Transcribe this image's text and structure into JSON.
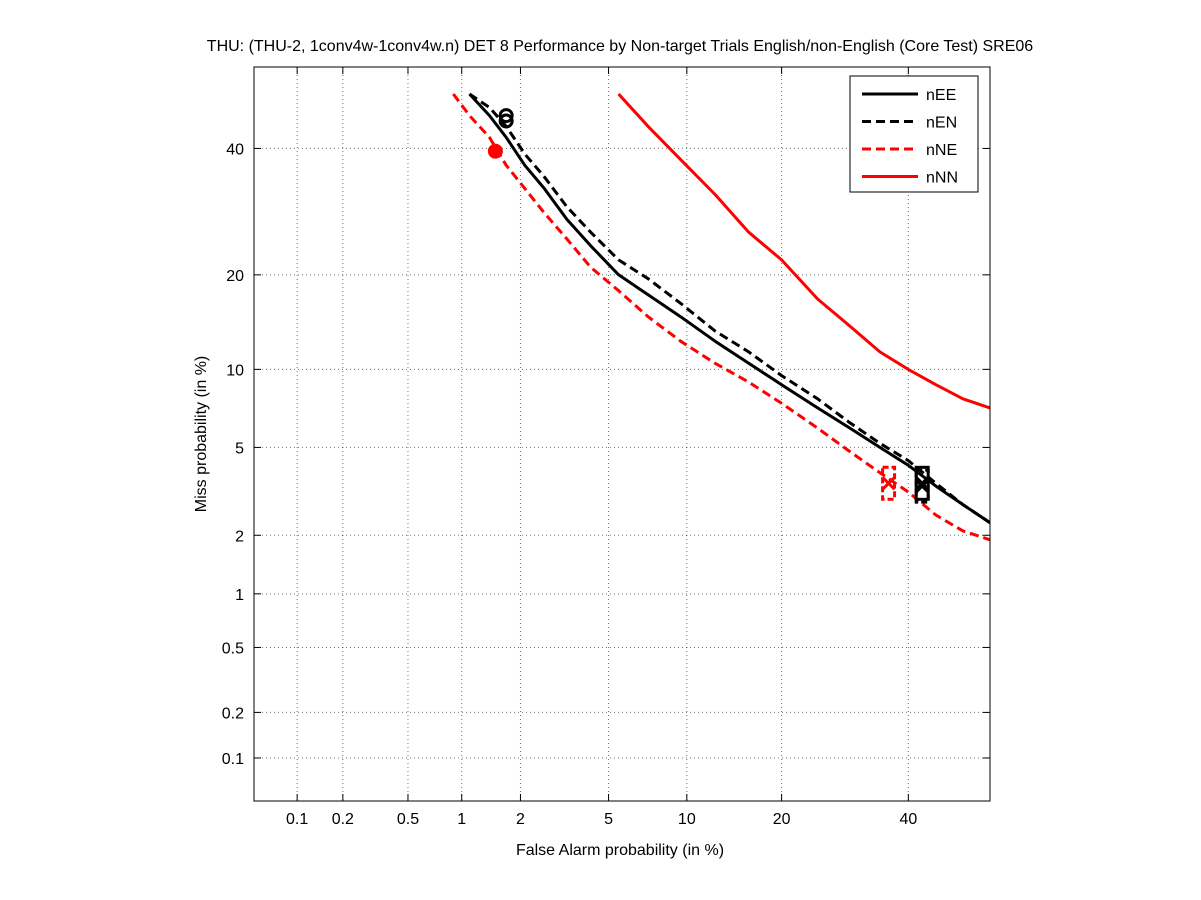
{
  "chart_data": {
    "type": "line",
    "title": "THU: (THU-2, 1conv4w-1conv4w.n) DET 8 Performance by Non-target Trials English/non-English (Core Test) SRE06",
    "xlabel": "False Alarm probability (in %)",
    "ylabel": "Miss probability (in %)",
    "scale": "normal-deviate (probit) on both axes",
    "xlim": [
      0.05,
      55
    ],
    "ylim": [
      0.05,
      55
    ],
    "x_ticks": [
      0.1,
      0.2,
      0.5,
      1,
      2,
      5,
      10,
      20,
      40
    ],
    "x_tick_labels": [
      "0.1",
      "0.2",
      "0.5",
      "1",
      "2",
      "5",
      "10",
      "20",
      "40"
    ],
    "y_ticks": [
      0.1,
      0.2,
      0.5,
      1,
      2,
      5,
      10,
      20,
      40
    ],
    "y_tick_labels": [
      "0.1",
      "0.2",
      "0.5",
      "1",
      "2",
      "5",
      "10",
      "20",
      "40"
    ],
    "grid": true,
    "legend_position": "top-right",
    "series": [
      {
        "name": "nEE",
        "color": "#000000",
        "dash": "solid",
        "x": [
          1.1,
          1.4,
          1.7,
          2.1,
          2.6,
          3.3,
          4.2,
          5.5,
          7.2,
          9.5,
          12.5,
          16,
          20,
          25,
          30,
          35,
          40,
          45,
          50,
          55
        ],
        "y": [
          50,
          46,
          42,
          37,
          33,
          28,
          24,
          20,
          17.5,
          15,
          12.5,
          10.5,
          8.8,
          7.2,
          6.0,
          5.0,
          4.2,
          3.4,
          2.8,
          2.3
        ],
        "dcf_marker": {
          "x": 1.7,
          "y": 46,
          "style": "circle"
        },
        "eer_marker": {
          "x": 42.5,
          "y": 3.5,
          "style": "box"
        }
      },
      {
        "name": "nEN",
        "color": "#000000",
        "dash": "dashed",
        "x": [
          1.1,
          1.4,
          1.7,
          2.1,
          2.6,
          3.3,
          4.2,
          5.5,
          7.2,
          9.5,
          12.5,
          16,
          20,
          25,
          30,
          35,
          40,
          45,
          50,
          55
        ],
        "y": [
          50,
          47.5,
          44,
          39,
          35,
          30,
          26,
          22,
          19.5,
          16.5,
          13.5,
          11.5,
          9.5,
          7.8,
          6.3,
          5.2,
          4.4,
          3.5,
          2.8,
          2.3
        ],
        "dcf_marker": {
          "x": 1.7,
          "y": 45,
          "style": "circle"
        },
        "eer_marker": {
          "x": 42.5,
          "y": 3.4,
          "style": "box"
        }
      },
      {
        "name": "nNE",
        "color": "#ff0000",
        "dash": "dashed",
        "x": [
          0.9,
          1.1,
          1.4,
          1.7,
          2.1,
          2.6,
          3.3,
          4.2,
          5.5,
          7.2,
          9.5,
          12.5,
          16,
          20,
          25,
          30,
          35,
          40,
          45,
          50,
          55
        ],
        "y": [
          50,
          46,
          42,
          37,
          33,
          29,
          25,
          21,
          18,
          15,
          12.5,
          10.5,
          9,
          7.5,
          6,
          4.8,
          3.9,
          3.2,
          2.5,
          2.1,
          1.9
        ],
        "dcf_marker": {
          "x": 1.5,
          "y": 39.5,
          "style": "circle"
        },
        "eer_marker": {
          "x": 36.5,
          "y": 3.5,
          "style": "box"
        }
      },
      {
        "name": "nNN",
        "color": "#ff0000",
        "dash": "solid",
        "x": [
          5.5,
          7.2,
          9.5,
          12.5,
          16,
          20,
          25,
          30,
          35,
          40,
          45,
          50,
          55
        ],
        "y": [
          50,
          44,
          38,
          32,
          26,
          22,
          17,
          14,
          11.5,
          10,
          8.8,
          7.8,
          7.2
        ]
      }
    ]
  }
}
